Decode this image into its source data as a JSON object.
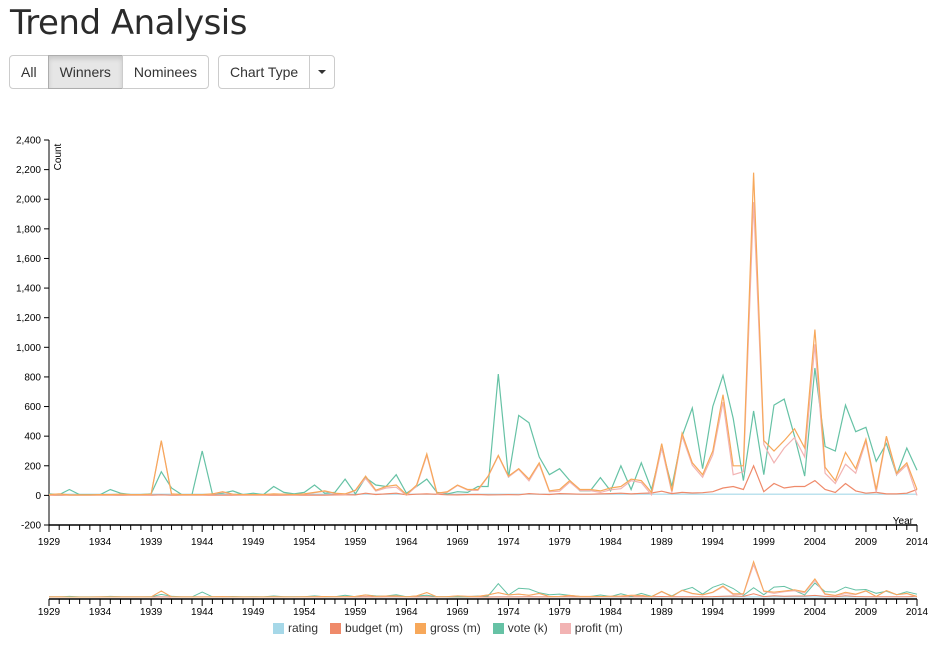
{
  "title": "Trend Analysis",
  "filters": [
    {
      "label": "All",
      "active": false
    },
    {
      "label": "Winners",
      "active": true
    },
    {
      "label": "Nominees",
      "active": false
    }
  ],
  "chart_type_label": "Chart Type",
  "caret_icon": "chevron-down-icon",
  "colors": {
    "rating": "#a6d8e8",
    "budget": "#ef8a6a",
    "gross": "#f7a85a",
    "vote": "#66c2a5",
    "profit": "#f2b3b3"
  },
  "chart_data": {
    "type": "line",
    "xlabel": "Year",
    "ylabel": "Count",
    "xlim": [
      1929,
      2014
    ],
    "ylim": [
      -200,
      2400
    ],
    "y_ticks": [
      -200,
      0,
      200,
      400,
      600,
      800,
      1000,
      1200,
      1400,
      1600,
      1800,
      2000,
      2200,
      2400
    ],
    "y_tick_labels": [
      "-200",
      "0",
      "200",
      "400",
      "600",
      "800",
      "1,000",
      "1,200",
      "1,400",
      "1,600",
      "1,800",
      "2,000",
      "2,200",
      "2,400"
    ],
    "x_tick_labels": [
      "1929",
      "1934",
      "1939",
      "1944",
      "1949",
      "1954",
      "1959",
      "1964",
      "1969",
      "1974",
      "1979",
      "1984",
      "1989",
      "1994",
      "1999",
      "2004",
      "2009",
      "2014"
    ],
    "x": [
      1929,
      1930,
      1931,
      1932,
      1933,
      1934,
      1935,
      1936,
      1937,
      1938,
      1939,
      1940,
      1941,
      1942,
      1943,
      1944,
      1945,
      1946,
      1947,
      1948,
      1949,
      1950,
      1951,
      1952,
      1953,
      1954,
      1955,
      1956,
      1957,
      1958,
      1959,
      1960,
      1961,
      1962,
      1963,
      1964,
      1965,
      1966,
      1967,
      1968,
      1969,
      1970,
      1971,
      1972,
      1973,
      1974,
      1975,
      1976,
      1977,
      1978,
      1979,
      1980,
      1981,
      1982,
      1983,
      1984,
      1985,
      1986,
      1987,
      1988,
      1989,
      1990,
      1991,
      1992,
      1993,
      1994,
      1995,
      1996,
      1997,
      1998,
      1999,
      2000,
      2001,
      2002,
      2003,
      2004,
      2005,
      2006,
      2007,
      2008,
      2009,
      2010,
      2011,
      2012,
      2013,
      2014
    ],
    "legend_position": "bottom",
    "series": [
      {
        "name": "rating",
        "key": "rating",
        "values": [
          8,
          8,
          8,
          8,
          8,
          8,
          8,
          8,
          8,
          8,
          8,
          8,
          8,
          8,
          8,
          8,
          8,
          8,
          8,
          8,
          8,
          8,
          8,
          8,
          8,
          8,
          8,
          8,
          8,
          8,
          8,
          8,
          8,
          8,
          8,
          8,
          8,
          8,
          8,
          8,
          8,
          8,
          8,
          8,
          8,
          8,
          8,
          8,
          8,
          8,
          8,
          8,
          8,
          8,
          8,
          8,
          8,
          8,
          8,
          8,
          8,
          8,
          8,
          8,
          8,
          8,
          8,
          8,
          8,
          8,
          8,
          8,
          8,
          8,
          8,
          8,
          8,
          8,
          8,
          8,
          8,
          8,
          8,
          8,
          8,
          8
        ]
      },
      {
        "name": "budget (m)",
        "key": "budget",
        "values": [
          1,
          2,
          1,
          1,
          1,
          1,
          1,
          1,
          1,
          1,
          2,
          4,
          1,
          1,
          1,
          1,
          2,
          2,
          2,
          2,
          2,
          2,
          2,
          2,
          2,
          2,
          2,
          2,
          3,
          4,
          3,
          15,
          6,
          10,
          15,
          4,
          8,
          10,
          7,
          4,
          3,
          5,
          6,
          3,
          4,
          5,
          4,
          12,
          8,
          6,
          12,
          10,
          8,
          8,
          10,
          12,
          15,
          10,
          14,
          16,
          28,
          12,
          20,
          16,
          18,
          25,
          50,
          60,
          40,
          200,
          25,
          80,
          50,
          60,
          60,
          100,
          40,
          20,
          80,
          30,
          15,
          20,
          10,
          10,
          15,
          40
        ]
      },
      {
        "name": "gross (m)",
        "key": "gross",
        "values": [
          5,
          10,
          3,
          3,
          3,
          5,
          5,
          8,
          5,
          5,
          8,
          370,
          10,
          5,
          5,
          5,
          10,
          25,
          8,
          5,
          5,
          5,
          10,
          8,
          5,
          10,
          20,
          30,
          15,
          10,
          35,
          130,
          35,
          60,
          70,
          5,
          70,
          280,
          15,
          25,
          70,
          40,
          40,
          130,
          270,
          130,
          180,
          110,
          220,
          30,
          40,
          100,
          40,
          40,
          30,
          50,
          60,
          110,
          100,
          20,
          350,
          30,
          420,
          220,
          140,
          300,
          680,
          200,
          200,
          2180,
          370,
          300,
          370,
          450,
          320,
          1120,
          190,
          100,
          290,
          180,
          380,
          40,
          400,
          150,
          220,
          40
        ]
      },
      {
        "name": "vote (k)",
        "key": "vote",
        "values": [
          10,
          5,
          40,
          5,
          5,
          5,
          40,
          15,
          5,
          5,
          10,
          160,
          50,
          5,
          5,
          300,
          10,
          15,
          30,
          5,
          15,
          5,
          60,
          20,
          10,
          20,
          70,
          15,
          20,
          110,
          10,
          120,
          70,
          60,
          140,
          15,
          60,
          110,
          20,
          10,
          25,
          20,
          60,
          60,
          820,
          120,
          540,
          490,
          260,
          140,
          180,
          100,
          30,
          30,
          120,
          30,
          200,
          40,
          220,
          40,
          320,
          60,
          400,
          590,
          180,
          600,
          810,
          520,
          100,
          570,
          140,
          610,
          650,
          400,
          130,
          860,
          330,
          300,
          610,
          430,
          460,
          230,
          350,
          140,
          320,
          170
        ]
      },
      {
        "name": "profit (m)",
        "key": "profit",
        "values": [
          4,
          8,
          2,
          2,
          2,
          4,
          4,
          7,
          4,
          4,
          6,
          366,
          9,
          4,
          4,
          4,
          8,
          23,
          6,
          3,
          3,
          3,
          8,
          6,
          3,
          8,
          18,
          28,
          12,
          6,
          32,
          115,
          29,
          50,
          55,
          1,
          62,
          270,
          8,
          21,
          67,
          35,
          34,
          127,
          266,
          125,
          176,
          98,
          212,
          24,
          28,
          90,
          32,
          32,
          20,
          38,
          45,
          100,
          86,
          4,
          322,
          18,
          400,
          204,
          122,
          275,
          630,
          140,
          160,
          1980,
          345,
          220,
          320,
          390,
          260,
          1020,
          150,
          80,
          210,
          150,
          365,
          20,
          390,
          140,
          205,
          0
        ]
      }
    ]
  },
  "overview": {
    "tick_labels": [
      "1929",
      "1934",
      "1939",
      "1944",
      "1949",
      "1954",
      "1959",
      "1964",
      "1969",
      "1974",
      "1979",
      "1984",
      "1989",
      "1994",
      "1999",
      "2004",
      "2009",
      "2014"
    ]
  }
}
